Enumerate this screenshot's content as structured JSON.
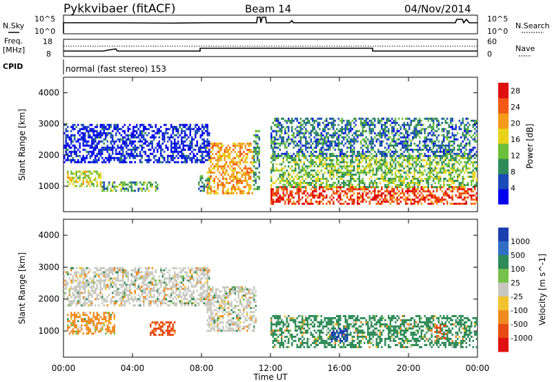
{
  "header": {
    "station": "Pykkvibaer (fitACF)",
    "beam": "Beam 14",
    "date": "04/Nov/2014"
  },
  "top_panels": {
    "nsky_label": "N.Sky",
    "nsky_ticks_left": [
      "10^5",
      "10^0"
    ],
    "nsky_ticks_right": [
      "10^5",
      "10^0"
    ],
    "nsearch_label": "N.Search",
    "freq_label_line1": "Freq.",
    "freq_label_line2": "[MHz]",
    "freq_ticks": [
      "18",
      "8"
    ],
    "nave_label": "Nave",
    "nave_ticks": [
      "60",
      "0"
    ],
    "cpid_label": "CPID",
    "cpid_text": "normal (fast stereo) 153"
  },
  "x_axis": {
    "label": "Time UT",
    "ticks": [
      "00:00",
      "04:00",
      "08:00",
      "12:00",
      "16:00",
      "20:00",
      "00:00"
    ]
  },
  "colors": {
    "power_scale": [
      "#0000ee",
      "#1a4ab8",
      "#2e8b57",
      "#6bbf3a",
      "#e8d21a",
      "#f59a1a",
      "#f05a14",
      "#e01010"
    ],
    "velocity_scale": [
      "#1b3fb0",
      "#2f6ec4",
      "#2e8b57",
      "#76c24a",
      "#c8c8c0",
      "#f2c22e",
      "#f08a1e",
      "#e84a14",
      "#e01010"
    ]
  },
  "chart_data": [
    {
      "type": "heatmap",
      "title": "Power",
      "ylabel": "Slant Range [km]",
      "xlabel": "",
      "x_range": [
        "00:00",
        "24:00"
      ],
      "ylim": [
        180,
        4500
      ],
      "y_ticks": [
        1000,
        2000,
        3000,
        4000
      ],
      "colorbar": {
        "label": "Power [dB]",
        "ticks": [
          4,
          8,
          12,
          16,
          20,
          24,
          28
        ],
        "range": [
          0,
          30
        ]
      },
      "regions": [
        {
          "t0": 0.2,
          "t1": 2.2,
          "r0": 1000,
          "r1": 1500,
          "level": 16
        },
        {
          "t0": 2.2,
          "t1": 5.5,
          "r0": 850,
          "r1": 1150,
          "level": 11
        },
        {
          "t0": 7.8,
          "t1": 8.6,
          "r0": 850,
          "r1": 1350,
          "level": 10
        },
        {
          "t0": 8.3,
          "t1": 11.0,
          "r0": 800,
          "r1": 2400,
          "level": 20
        },
        {
          "t0": 11.0,
          "t1": 11.4,
          "r0": 900,
          "r1": 2800,
          "level": 10
        },
        {
          "t0": 12.0,
          "t1": 24.0,
          "r0": 450,
          "r1": 1000,
          "level": 26
        },
        {
          "t0": 12.0,
          "t1": 24.0,
          "r0": 1000,
          "r1": 2000,
          "level": 13
        },
        {
          "t0": 12.0,
          "t1": 24.0,
          "r0": 2000,
          "r1": 3200,
          "level": 8
        },
        {
          "t0": 0.0,
          "t1": 8.5,
          "r0": 1800,
          "r1": 3000,
          "level": 3
        }
      ]
    },
    {
      "type": "heatmap",
      "title": "Velocity",
      "ylabel": "Slant Range [km]",
      "xlabel": "Time UT",
      "x_range": [
        "00:00",
        "24:00"
      ],
      "ylim": [
        180,
        4500
      ],
      "y_ticks": [
        1000,
        2000,
        3000,
        4000
      ],
      "colorbar": {
        "label": "Velocity [m s^-1]",
        "ticks": [
          "1000",
          "500",
          "100",
          "25",
          "-25",
          "-100",
          "-500",
          "-1000"
        ]
      },
      "regions": [
        {
          "t0": 0.0,
          "t1": 8.5,
          "r0": 1800,
          "r1": 3000,
          "level": 0
        },
        {
          "t0": 0.2,
          "t1": 3.0,
          "r0": 900,
          "r1": 1600,
          "level": -100
        },
        {
          "t0": 5.0,
          "t1": 6.5,
          "r0": 900,
          "r1": 1300,
          "level": -500
        },
        {
          "t0": 8.3,
          "t1": 11.2,
          "r0": 1000,
          "r1": 2400,
          "level": 0
        },
        {
          "t0": 12.0,
          "t1": 24.0,
          "r0": 500,
          "r1": 1500,
          "level": 100
        },
        {
          "t0": 15.5,
          "t1": 16.5,
          "r0": 700,
          "r1": 1100,
          "level": 1000
        },
        {
          "t0": 21.5,
          "t1": 22.2,
          "r0": 800,
          "r1": 1200,
          "level": -500
        }
      ]
    }
  ]
}
